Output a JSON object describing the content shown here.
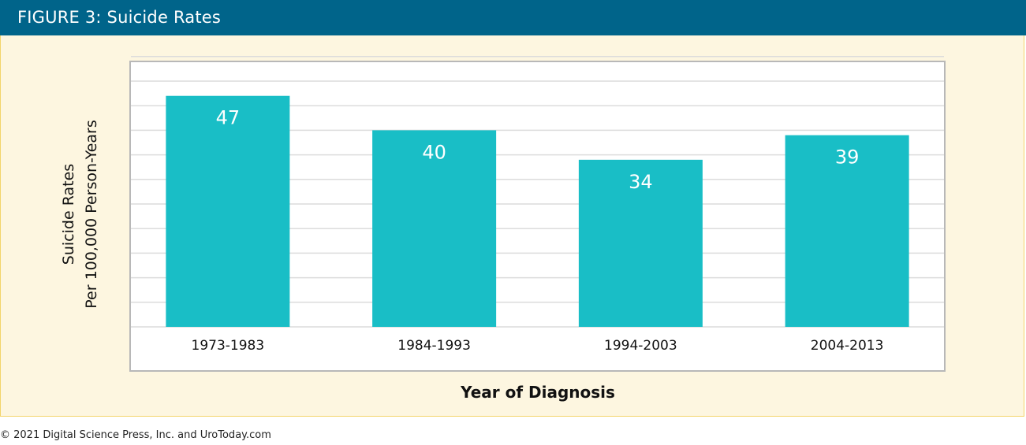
{
  "figure": {
    "title": "FIGURE 3: Suicide Rates"
  },
  "colors": {
    "header": "#00648a",
    "panel_background": "#fdf6e0",
    "panel_border": "#f3d46a",
    "bar": "#19bec6",
    "gridline": "#dcdcdc"
  },
  "chart_data": {
    "type": "bar",
    "categories": [
      "1973-1983",
      "1984-1993",
      "1994-2003",
      "2004-2013"
    ],
    "values": [
      47,
      40,
      34,
      39
    ],
    "data_labels": [
      "47",
      "40",
      "34",
      "39"
    ],
    "title": "",
    "xlabel": "Year of Diagnosis",
    "ylabel_lines": [
      "Suicide Rates",
      "Per 100,000 Person-Years"
    ],
    "ylim": [
      0,
      55
    ],
    "grid": true,
    "legend": "none"
  },
  "footer": {
    "copyright": "© 2021 Digital Science Press, Inc. and UroToday.com"
  }
}
